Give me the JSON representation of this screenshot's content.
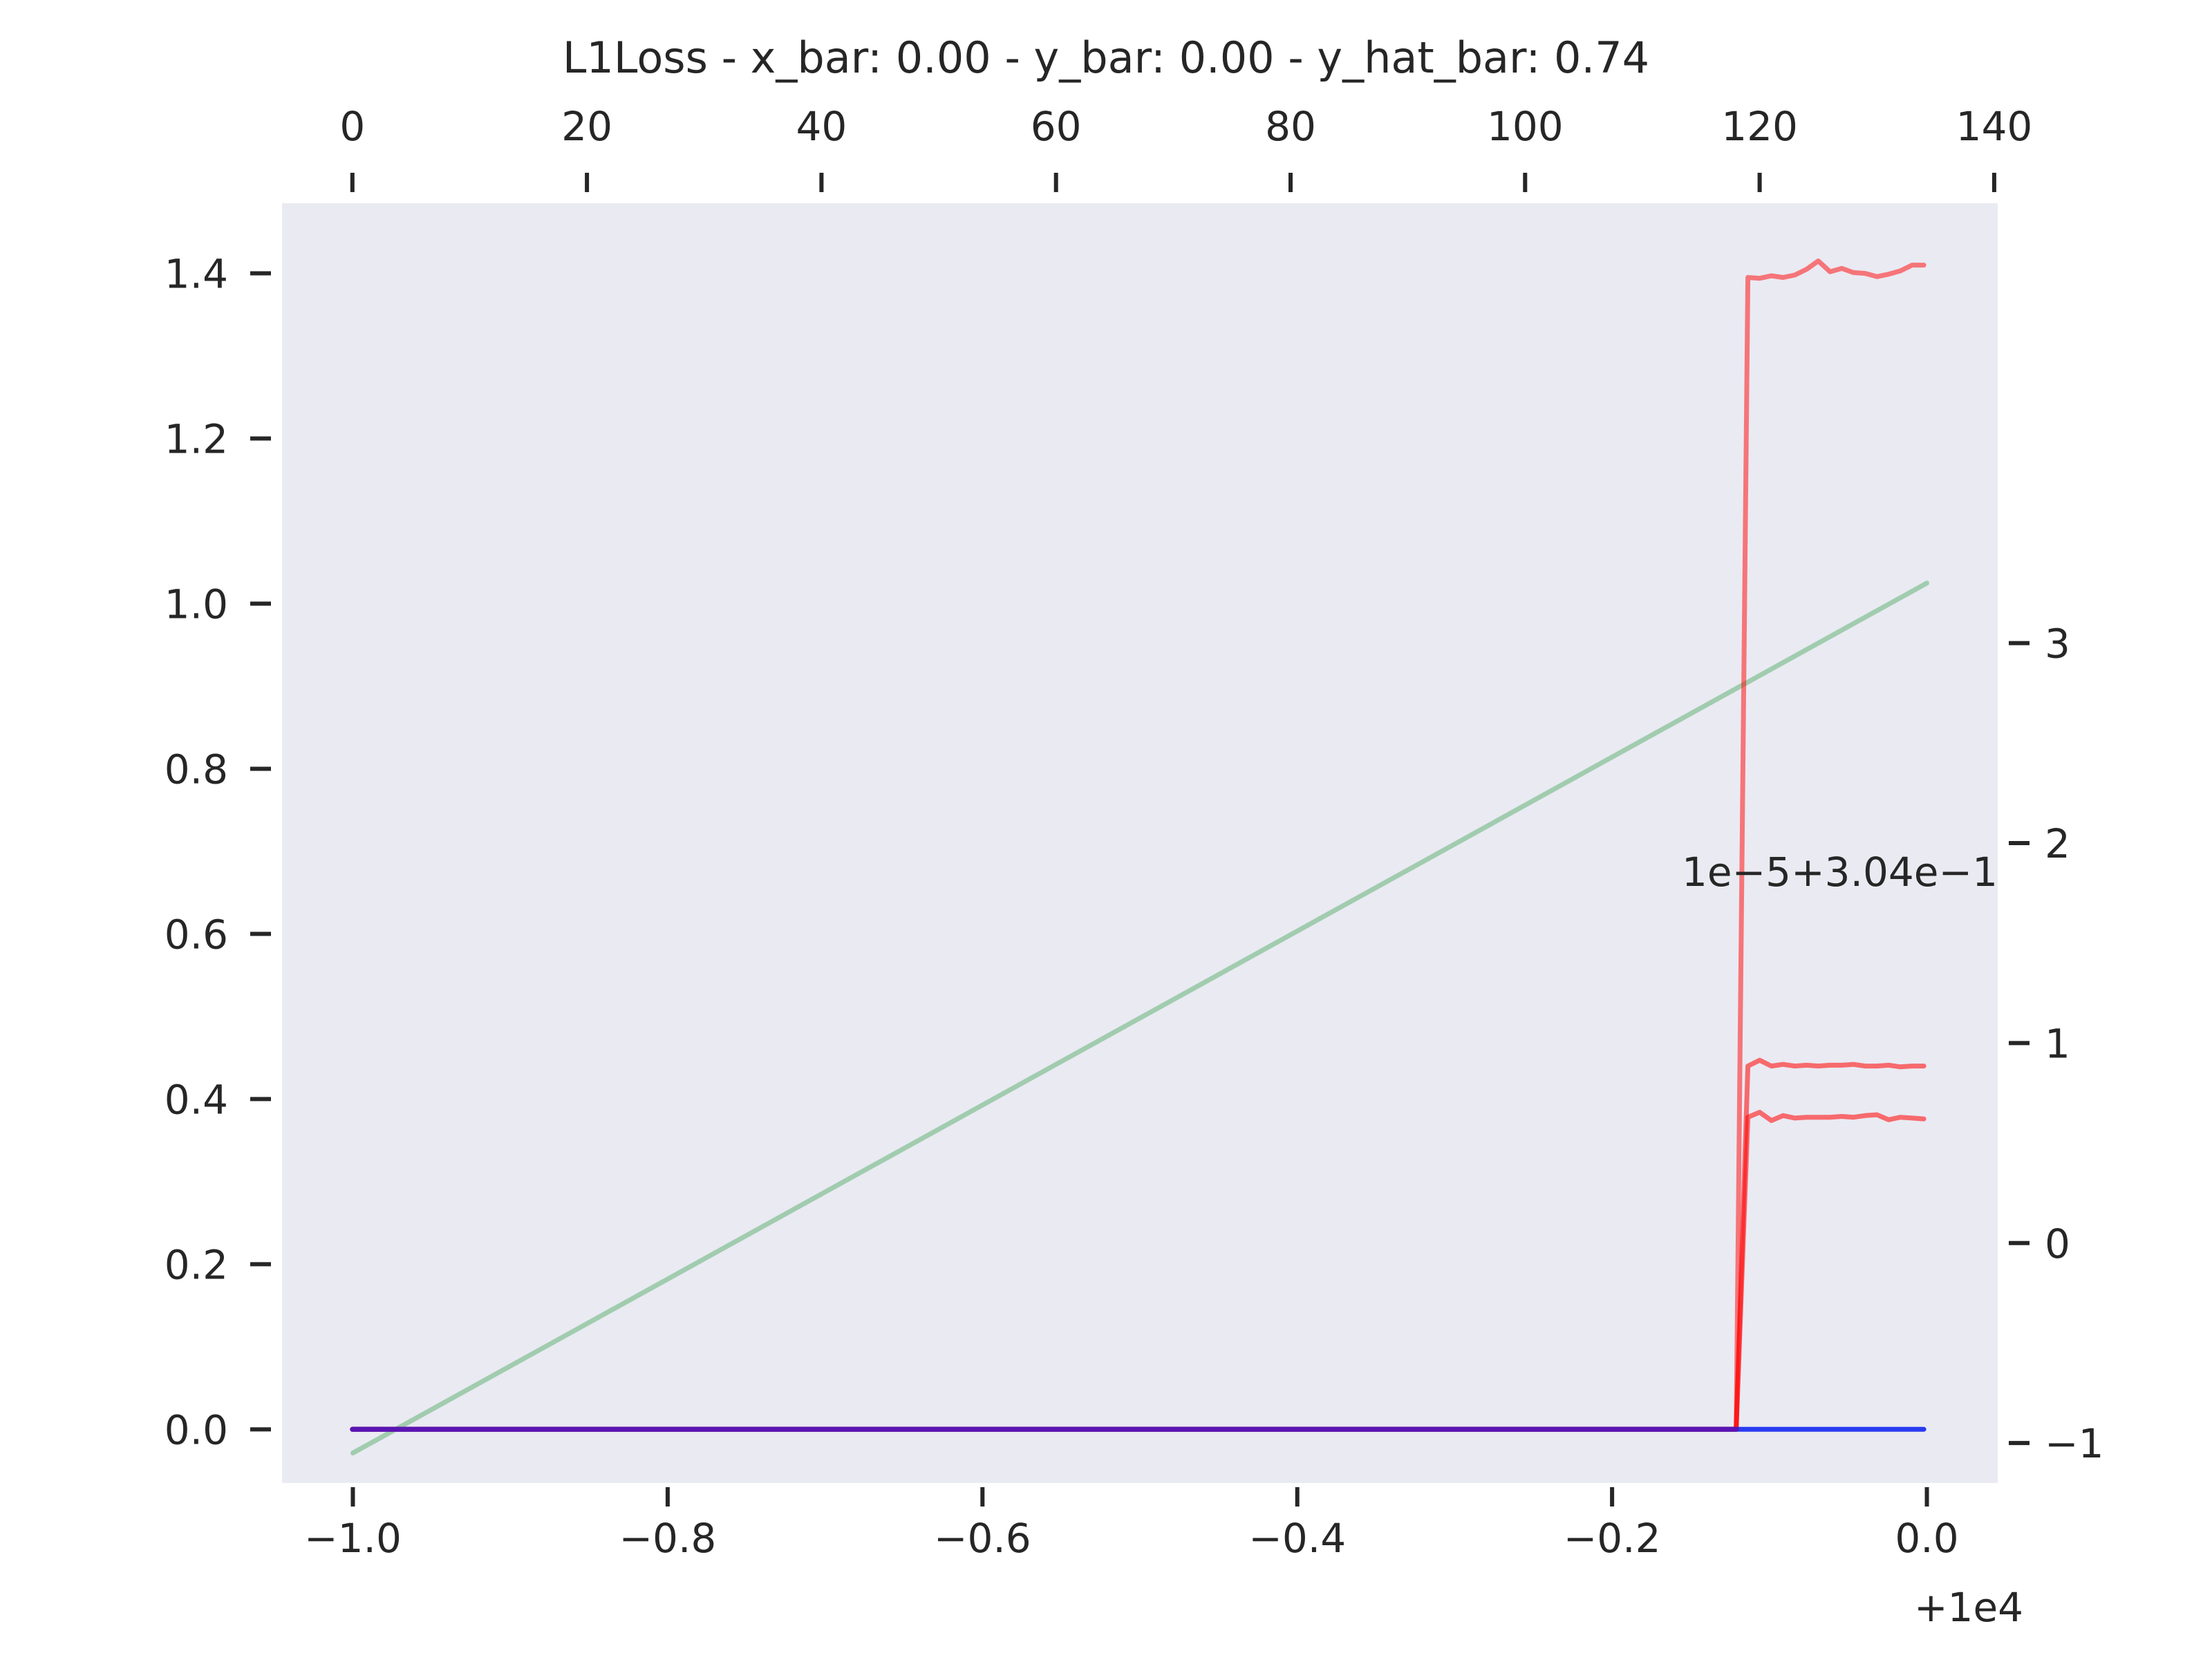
{
  "chart_data": {
    "type": "line",
    "title": "L1Loss - x_bar: 0.00 - y_bar: 0.00 - y_hat_bar: 0.74",
    "background": "#eaeaf2",
    "grid": false,
    "axes": {
      "bottom": {
        "ticks": [
          -1.0,
          -0.8,
          -0.6,
          -0.4,
          -0.2,
          0.0
        ],
        "tick_labels": [
          "−1.0",
          "−0.8",
          "−0.6",
          "−0.4",
          "−0.2",
          "0.0"
        ],
        "offset_label": "+1e4",
        "range": [
          -1.045,
          0.045
        ]
      },
      "top": {
        "ticks": [
          0,
          20,
          40,
          60,
          80,
          100,
          120,
          140
        ],
        "tick_labels": [
          "0",
          "20",
          "40",
          "60",
          "80",
          "100",
          "120",
          "140"
        ],
        "range": [
          -6.0,
          140.3
        ]
      },
      "left": {
        "ticks": [
          0.0,
          0.2,
          0.4,
          0.6,
          0.8,
          1.0,
          1.2,
          1.4
        ],
        "tick_labels": [
          "0.0",
          "0.2",
          "0.4",
          "0.6",
          "0.8",
          "1.0",
          "1.2",
          "1.4"
        ],
        "range": [
          -0.065,
          1.485
        ]
      },
      "right": {
        "ticks": [
          -1,
          0,
          1,
          2,
          3
        ],
        "tick_labels": [
          "−1",
          "0",
          "1",
          "2",
          "3"
        ],
        "offset_label": "1e−5+3.04e−1",
        "range": [
          -1.2,
          5.2
        ]
      }
    },
    "series": [
      {
        "color": "#8fc49e",
        "opacity": 0.8,
        "axis": "right",
        "x": [
          -1.0,
          0.0
        ],
        "y": [
          -1.05,
          3.3
        ]
      },
      {
        "color": "#ff0000",
        "opacity": 0.5,
        "axis": "top",
        "x": [
          0,
          118,
          119,
          120,
          121,
          122,
          123,
          124,
          125,
          126,
          127,
          128,
          129,
          130,
          131,
          132,
          133,
          134
        ],
        "y": [
          0,
          0,
          1.395,
          1.394,
          1.397,
          1.395,
          1.398,
          1.405,
          1.415,
          1.402,
          1.406,
          1.401,
          1.4,
          1.396,
          1.399,
          1.403,
          1.41,
          1.41
        ]
      },
      {
        "color": "#ff0000",
        "opacity": 0.55,
        "axis": "top",
        "x": [
          0,
          118,
          119,
          120,
          121,
          122,
          123,
          124,
          125,
          126,
          127,
          128,
          129,
          130,
          131,
          132,
          133,
          134
        ],
        "y": [
          0,
          0,
          0.44,
          0.447,
          0.44,
          0.442,
          0.44,
          0.441,
          0.44,
          0.441,
          0.441,
          0.442,
          0.44,
          0.44,
          0.441,
          0.439,
          0.44,
          0.44
        ]
      },
      {
        "color": "#ff0000",
        "opacity": 0.55,
        "axis": "top",
        "x": [
          0,
          118,
          119,
          120,
          121,
          122,
          123,
          124,
          125,
          126,
          127,
          128,
          129,
          130,
          131,
          132,
          133,
          134
        ],
        "y": [
          0,
          0,
          0.378,
          0.384,
          0.374,
          0.38,
          0.377,
          0.378,
          0.378,
          0.378,
          0.379,
          0.378,
          0.38,
          0.381,
          0.375,
          0.378,
          0.377,
          0.376
        ]
      },
      {
        "color": "#1428f0",
        "opacity": 0.9,
        "axis": "top",
        "x": [
          0,
          134
        ],
        "y": [
          0,
          0
        ]
      },
      {
        "color": "#5a14b4",
        "opacity": 1.0,
        "axis": "top",
        "x": [
          0,
          118
        ],
        "y": [
          0,
          0
        ]
      }
    ]
  }
}
